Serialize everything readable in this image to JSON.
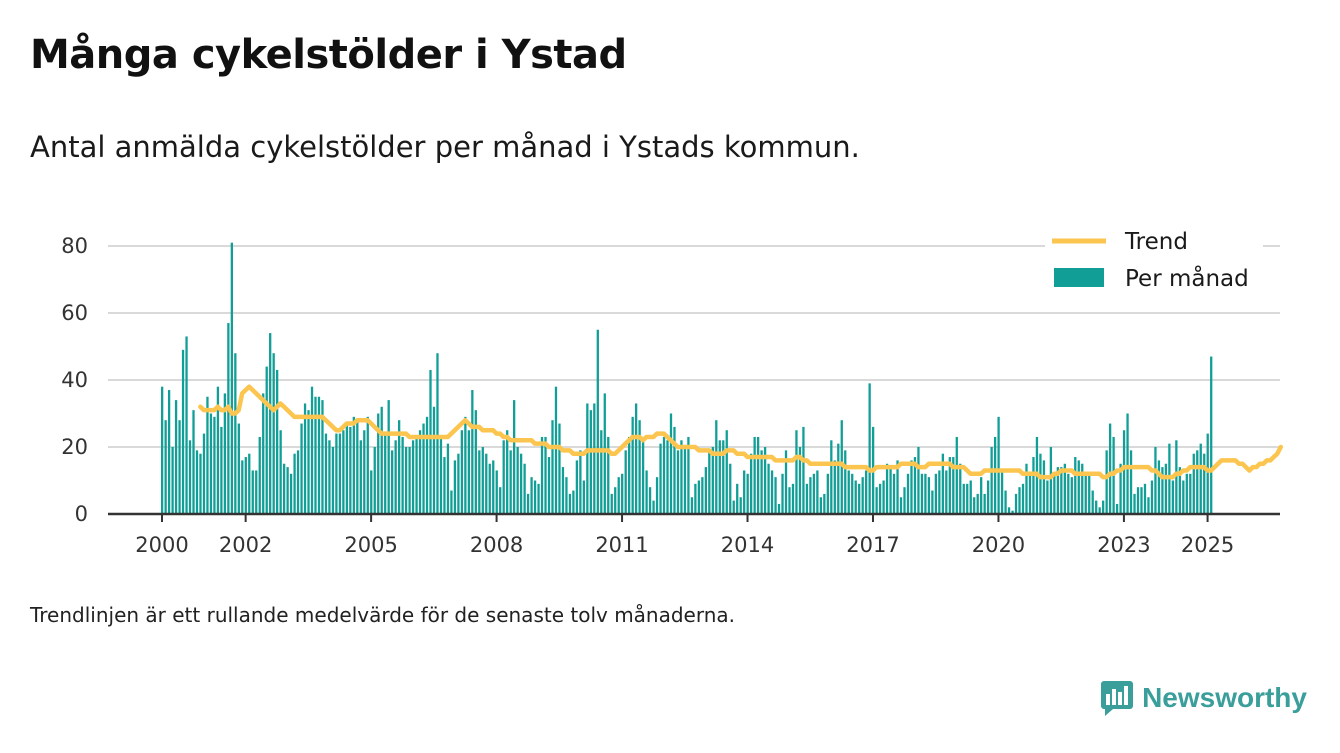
{
  "title": "Många cykelstölder i Ystad",
  "subtitle": "Antal anmälda cykelstölder per månad i Ystads kommun.",
  "note": "Trendlinjen är ett rullande medelvärde för de senaste tolv månaderna.",
  "brand": {
    "name": "Newsworthy",
    "icon": "newsworthy-logo-icon",
    "color": "#3a9e9b"
  },
  "colors": {
    "bars": "#109e96",
    "trend": "#fbc54f",
    "grid": "#d9d9d9",
    "axis": "#333333"
  },
  "chart_data": {
    "type": "bar",
    "ylim": [
      0,
      80
    ],
    "yticks": [
      "0",
      "20",
      "40",
      "60",
      "80"
    ],
    "xticks": [
      "2000",
      "2002",
      "2005",
      "2008",
      "2011",
      "2014",
      "2017",
      "2020",
      "2023",
      "2025"
    ],
    "grid": true,
    "legend_position": "top-right",
    "start": "2000-01",
    "end": "2025-06",
    "series": [
      {
        "name": "Per månad",
        "kind": "bar",
        "values": [
          38,
          28,
          37,
          20,
          34,
          28,
          49,
          53,
          22,
          31,
          19,
          18,
          24,
          35,
          30,
          29,
          38,
          26,
          36,
          57,
          81,
          48,
          27,
          16,
          17,
          18,
          13,
          13,
          23,
          36,
          44,
          54,
          48,
          43,
          25,
          15,
          14,
          12,
          18,
          19,
          27,
          33,
          31,
          38,
          35,
          35,
          34,
          24,
          22,
          20,
          24,
          24,
          25,
          27,
          26,
          29,
          28,
          22,
          25,
          29,
          13,
          20,
          30,
          32,
          24,
          34,
          19,
          22,
          28,
          23,
          20,
          20,
          22,
          23,
          25,
          27,
          29,
          43,
          32,
          48,
          23,
          17,
          21,
          7,
          16,
          18,
          25,
          29,
          25,
          37,
          31,
          19,
          20,
          18,
          15,
          16,
          13,
          8,
          22,
          25,
          19,
          34,
          20,
          18,
          15,
          6,
          11,
          10,
          9,
          23,
          23,
          17,
          28,
          38,
          27,
          14,
          11,
          6,
          7,
          16,
          19,
          10,
          33,
          31,
          33,
          55,
          25,
          36,
          23,
          6,
          8,
          11,
          12,
          19,
          23,
          29,
          33,
          28,
          23,
          13,
          8,
          4,
          11,
          21,
          23,
          22,
          30,
          26,
          19,
          22,
          20,
          23,
          5,
          9,
          10,
          11,
          14,
          19,
          20,
          28,
          22,
          22,
          25,
          15,
          4,
          9,
          5,
          13,
          12,
          18,
          23,
          23,
          19,
          20,
          15,
          13,
          11,
          3,
          12,
          19,
          8,
          9,
          25,
          20,
          26,
          9,
          11,
          12,
          13,
          5,
          6,
          12,
          22,
          16,
          21,
          28,
          19,
          13,
          12,
          10,
          9,
          11,
          13,
          39,
          26,
          8,
          9,
          10,
          15,
          14,
          12,
          16,
          5,
          8,
          12,
          16,
          17,
          20,
          12,
          12,
          11,
          7,
          12,
          13,
          18,
          13,
          17,
          17,
          23,
          15,
          9,
          9,
          10,
          5,
          6,
          11,
          6,
          10,
          20,
          23,
          29,
          13,
          7,
          2,
          1,
          6,
          8,
          9,
          15,
          12,
          17,
          23,
          18,
          16,
          10,
          20,
          12,
          14,
          14,
          15,
          12,
          11,
          17,
          16,
          15,
          12,
          12,
          7,
          4,
          2,
          4,
          19,
          27,
          23,
          3,
          15,
          25,
          30,
          19,
          6,
          8,
          8,
          9,
          5,
          10,
          20,
          16,
          14,
          15,
          21,
          10,
          22,
          14,
          10,
          12,
          12,
          18,
          19,
          21,
          18,
          24,
          47
        ]
      },
      {
        "name": "Trend",
        "kind": "line",
        "start": "2000-12",
        "values": [
          32,
          31,
          31,
          31,
          31,
          32,
          31,
          31,
          32,
          30,
          30,
          31,
          36,
          37,
          38,
          37,
          36,
          35,
          34,
          33,
          32,
          31,
          32,
          33,
          32,
          31,
          30,
          29,
          29,
          29,
          29,
          29,
          29,
          29,
          29,
          29,
          28,
          27,
          26,
          25,
          25,
          26,
          27,
          27,
          27,
          28,
          28,
          28,
          28,
          27,
          26,
          25,
          24,
          24,
          24,
          24,
          24,
          24,
          24,
          24,
          23,
          23,
          23,
          23,
          23,
          23,
          23,
          23,
          23,
          23,
          23,
          23,
          24,
          25,
          26,
          27,
          28,
          27,
          26,
          26,
          26,
          25,
          25,
          25,
          25,
          24,
          24,
          23,
          23,
          22,
          22,
          22,
          22,
          22,
          22,
          22,
          21,
          21,
          21,
          21,
          20,
          20,
          20,
          20,
          19,
          19,
          19,
          18,
          18,
          18,
          18,
          19,
          19,
          19,
          19,
          19,
          19,
          19,
          18,
          18,
          19,
          20,
          21,
          22,
          23,
          23,
          23,
          22,
          23,
          23,
          23,
          24,
          24,
          24,
          23,
          22,
          21,
          20,
          20,
          20,
          20,
          20,
          20,
          19,
          19,
          19,
          19,
          18,
          18,
          18,
          18,
          19,
          19,
          19,
          18,
          18,
          18,
          17,
          17,
          17,
          17,
          17,
          17,
          17,
          17,
          16,
          16,
          16,
          16,
          16,
          16,
          17,
          17,
          16,
          16,
          15,
          15,
          15,
          15,
          15,
          15,
          15,
          15,
          15,
          15,
          14,
          14,
          14,
          14,
          14,
          14,
          14,
          13,
          13,
          14,
          14,
          14,
          14,
          14,
          14,
          14,
          15,
          15,
          15,
          15,
          15,
          14,
          14,
          14,
          15,
          15,
          15,
          15,
          15,
          15,
          15,
          14,
          14,
          14,
          14,
          13,
          12,
          12,
          12,
          12,
          13,
          13,
          13,
          13,
          13,
          13,
          13,
          13,
          13,
          13,
          13,
          12,
          12,
          12,
          12,
          12,
          11,
          11,
          11,
          11,
          12,
          12,
          13,
          13,
          13,
          13,
          12,
          12,
          12,
          12,
          12,
          12,
          12,
          12,
          11,
          11,
          12,
          12,
          13,
          13,
          14,
          14,
          14,
          14,
          14,
          14,
          14,
          14,
          13,
          13,
          12,
          11,
          11,
          11,
          11,
          12,
          12,
          13,
          13,
          14,
          14,
          14,
          14,
          14,
          13,
          13,
          14,
          15,
          16,
          16,
          16,
          16,
          16,
          15,
          15,
          14,
          13,
          14,
          14,
          15,
          15,
          16,
          16,
          17,
          18,
          20
        ]
      }
    ]
  }
}
